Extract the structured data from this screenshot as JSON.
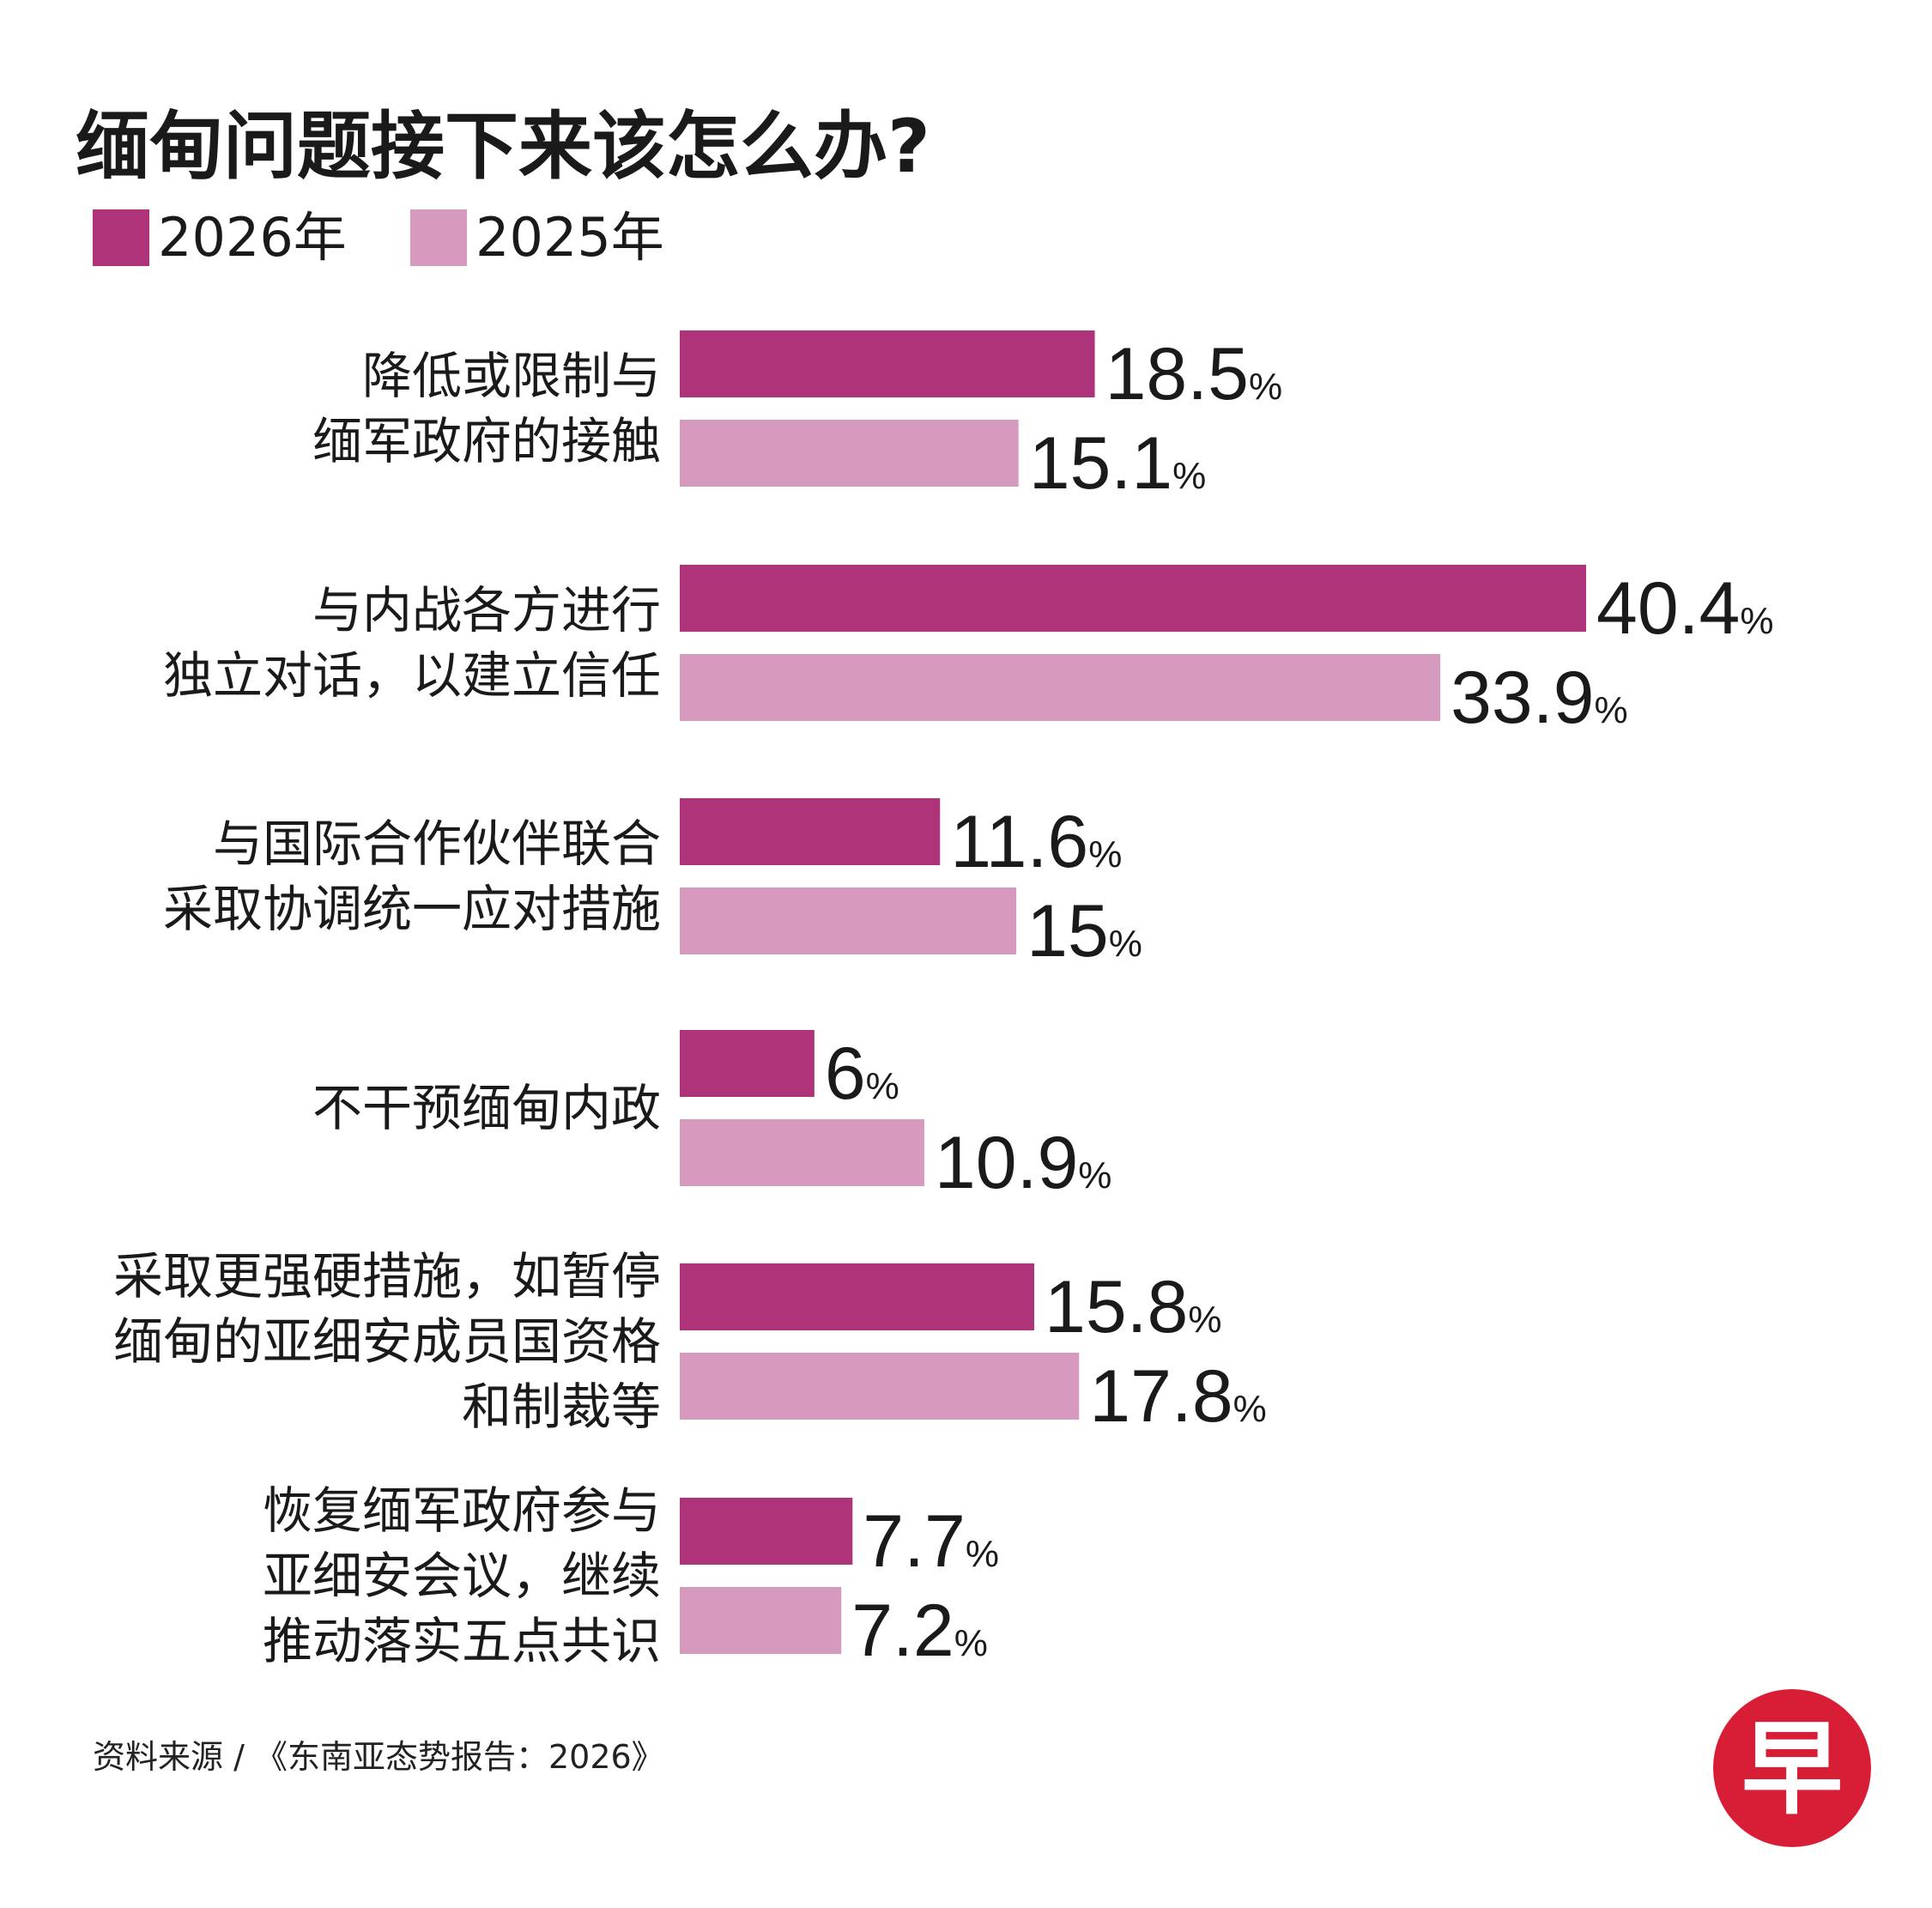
{
  "title": "缅甸问题接下来该怎么办?",
  "colors": {
    "series_2026": "#ae3378",
    "series_2025": "#d69abe",
    "logo": "#d81e36"
  },
  "legend": [
    {
      "label": "2026年",
      "series": "2026"
    },
    {
      "label": "2025年",
      "series": "2025"
    }
  ],
  "chart_data": {
    "type": "bar",
    "orientation": "horizontal",
    "title": "缅甸问题接下来该怎么办?",
    "unit": "%",
    "categories": [
      [
        "降低或限制与",
        "缅军政府的接触"
      ],
      [
        "与内战各方进行",
        "独立对话，以建立信任"
      ],
      [
        "与国际合作伙伴联合",
        "采取协调统一应对措施"
      ],
      [
        "不干预缅甸内政"
      ],
      [
        "采取更强硬措施，如暂停",
        "缅甸的亚细安成员国资格",
        "和制裁等"
      ],
      [
        "恢复缅军政府参与",
        "亚细安会议，继续",
        "推动落实五点共识"
      ]
    ],
    "series": [
      {
        "name": "2026年",
        "values": [
          "18.5",
          "40.4",
          "11.6",
          "6",
          "15.8",
          "7.7"
        ]
      },
      {
        "name": "2025年",
        "values": [
          "15.1",
          "33.9",
          "15",
          "10.9",
          "17.8",
          "7.2"
        ]
      }
    ],
    "percent_sign": "%"
  },
  "source": "资料来源 / 《东南亚态势报告：2026》",
  "logo": {
    "text": "早",
    "icon": "zaobao-logo-icon"
  }
}
